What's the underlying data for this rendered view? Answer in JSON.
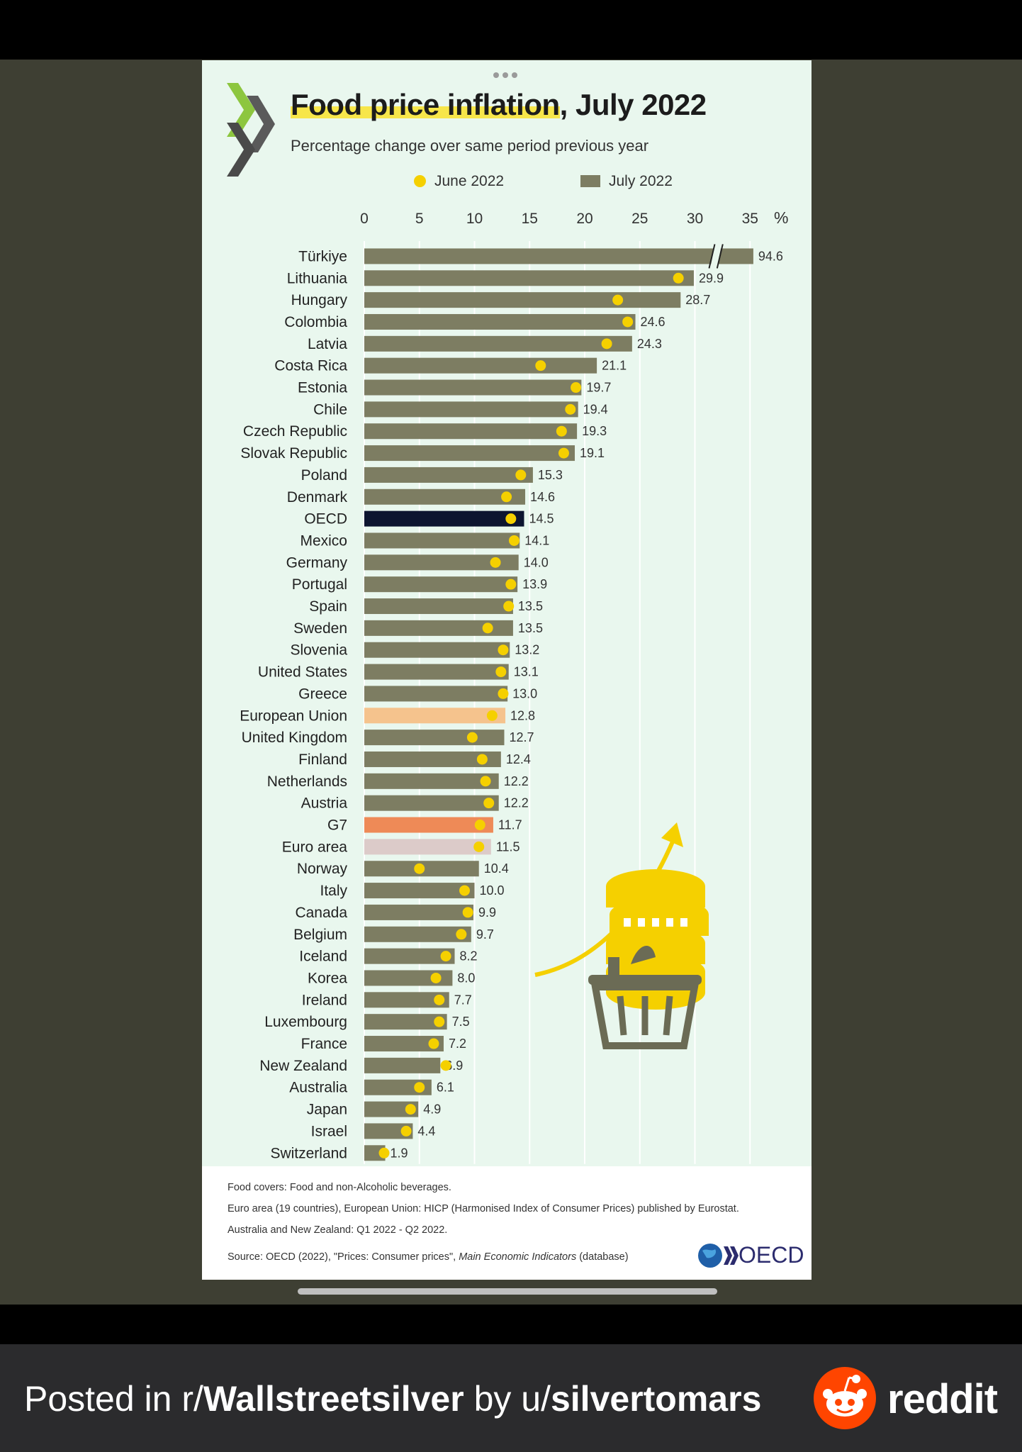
{
  "chart_data": {
    "type": "bar",
    "title_part1": "Food price inflation",
    "title_part2": ", July 2022",
    "subtitle": "Percentage change over same period previous year",
    "series": [
      {
        "name": "June 2022"
      },
      {
        "name": "July 2022"
      }
    ],
    "x_ticks": [
      "0",
      "5",
      "10",
      "15",
      "20",
      "25",
      "30",
      "35"
    ],
    "x_unit": "%",
    "xlim": [
      0,
      35
    ],
    "axis_break_value": 94.6,
    "categories": [
      "Türkiye",
      "Lithuania",
      "Hungary",
      "Colombia",
      "Latvia",
      "Costa Rica",
      "Estonia",
      "Chile",
      "Czech Republic",
      "Slovak Republic",
      "Poland",
      "Denmark",
      "OECD",
      "Mexico",
      "Germany",
      "Portugal",
      "Spain",
      "Sweden",
      "Slovenia",
      "United States",
      "Greece",
      "European Union",
      "United Kingdom",
      "Finland",
      "Netherlands",
      "Austria",
      "G7",
      "Euro area",
      "Norway",
      "Italy",
      "Canada",
      "Belgium",
      "Iceland",
      "Korea",
      "Ireland",
      "Luxembourg",
      "France",
      "New Zealand",
      "Australia",
      "Japan",
      "Israel",
      "Switzerland"
    ],
    "july_values": [
      94.6,
      29.9,
      28.7,
      24.6,
      24.3,
      21.1,
      19.7,
      19.4,
      19.3,
      19.1,
      15.3,
      14.6,
      14.5,
      14.1,
      14.0,
      13.9,
      13.5,
      13.5,
      13.2,
      13.1,
      13.0,
      12.8,
      12.7,
      12.4,
      12.2,
      12.2,
      11.7,
      11.5,
      10.4,
      10.0,
      9.9,
      9.7,
      8.2,
      8.0,
      7.7,
      7.5,
      7.2,
      6.9,
      6.1,
      4.9,
      4.4,
      1.9
    ],
    "july_labels": [
      "94.6",
      "29.9",
      "28.7",
      "24.6",
      "24.3",
      "21.1",
      "19.7",
      "19.4",
      "19.3",
      "19.1",
      "15.3",
      "14.6",
      "14.5",
      "14.1",
      "14.0",
      "13.9",
      "13.5",
      "13.5",
      "13.2",
      "13.1",
      "13.0",
      "12.8",
      "12.7",
      "12.4",
      "12.2",
      "12.2",
      "11.7",
      "11.5",
      "10.4",
      "10.0",
      "9.9",
      "9.7",
      "8.2",
      "8.0",
      "7.7",
      "7.5",
      "7.2",
      "6.9",
      "6.1",
      "4.9",
      "4.4",
      "1.9"
    ],
    "june_values": [
      null,
      28.5,
      23.0,
      23.9,
      22.0,
      16.0,
      19.2,
      18.7,
      17.9,
      18.1,
      14.2,
      12.9,
      13.3,
      13.6,
      11.9,
      13.3,
      13.1,
      11.2,
      12.6,
      12.4,
      12.6,
      11.6,
      9.8,
      10.7,
      11.0,
      11.3,
      10.5,
      10.4,
      5.0,
      9.1,
      9.4,
      8.8,
      7.4,
      6.5,
      6.8,
      6.8,
      6.3,
      7.4,
      5.0,
      4.2,
      3.8,
      1.8
    ],
    "colors": {
      "bar": "#7d7d62",
      "oecd": "#0d1530",
      "european_union": "#f5c38d",
      "g7": "#ee8a57",
      "euro_area": "#dccbc9",
      "june_dot": "#f5d000",
      "background": "#e9f7ee"
    },
    "notes": [
      "Food covers: Food and non-Alcoholic beverages.",
      "Euro area (19 countries), European Union: HICP (Harmonised Index of Consumer Prices) published by Eurostat.",
      "Australia and New Zealand:  Q1 2022 - Q2 2022."
    ],
    "source_prefix": "Source: OECD (2022), \"Prices: Consumer prices\", ",
    "source_italic": "Main Economic Indicators",
    "source_suffix": " (database)",
    "logo_text": "OECD"
  },
  "banner": {
    "prefix": "Posted in r/",
    "subreddit": "Wallstreetsilver",
    "middle": " by u/",
    "user": "silvertomars",
    "brand": "reddit"
  }
}
